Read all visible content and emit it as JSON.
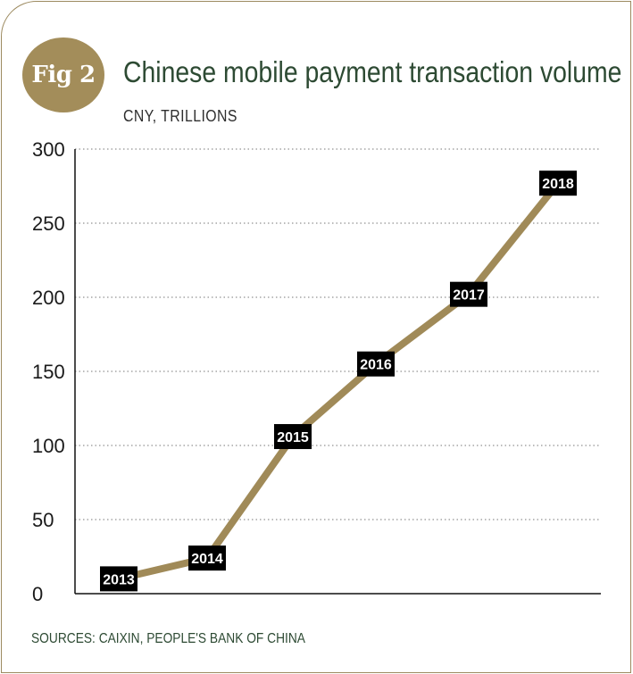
{
  "badge": "Fig 2",
  "title": "Chinese mobile payment transaction volume",
  "subtitle": "CNY, TRILLIONS",
  "source": "SOURCES: CAIXIN, PEOPLE'S BANK OF CHINA",
  "colors": {
    "line": "#a08a58",
    "title": "#2d4a33",
    "label_box": "#000000",
    "grid": "#777777"
  },
  "chart_data": {
    "type": "line",
    "title": "Chinese mobile payment transaction volume",
    "subtitle": "CNY, TRILLIONS",
    "xlabel": "",
    "ylabel": "",
    "categories": [
      "2013",
      "2014",
      "2015",
      "2016",
      "2017",
      "2018"
    ],
    "series": [
      {
        "values": [
          10,
          24,
          106,
          155,
          202,
          277
        ]
      }
    ],
    "ylim": [
      0,
      300
    ],
    "yticks": [
      0,
      50,
      100,
      150,
      200,
      250,
      300
    ],
    "grid": true,
    "legend": "none"
  }
}
